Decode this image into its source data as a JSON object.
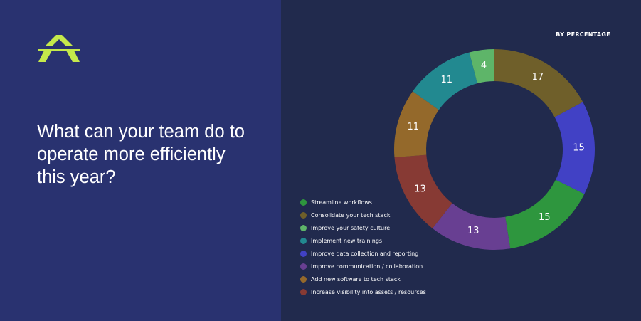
{
  "headline": "What can your team do to operate more efficiently this year?",
  "logo": {
    "icon": "brand-logo",
    "color": "#c5e94b"
  },
  "colors": {
    "left_bg": "#293270",
    "right_bg": "#212a4d"
  },
  "chart_data": {
    "type": "donut",
    "subtitle": "BY PERCENTAGE",
    "slices": [
      {
        "label": "Consolidate your tech stack",
        "value": 17,
        "color": "#6f5f2a"
      },
      {
        "label": "Improve data collection and reporting",
        "value": 15,
        "color": "#4141c5"
      },
      {
        "label": "Streamline workflows",
        "value": 15,
        "color": "#2e963e"
      },
      {
        "label": "Improve communication / collaboration",
        "value": 13,
        "color": "#683f92"
      },
      {
        "label": "Increase visibility into assets / resources",
        "value": 13,
        "color": "#873a34"
      },
      {
        "label": "Add new software to tech stack",
        "value": 11,
        "color": "#94692b"
      },
      {
        "label": "Implement new trainings",
        "value": 11,
        "color": "#228990"
      },
      {
        "label": "Improve your safety culture",
        "value": 4,
        "color": "#5eb569"
      }
    ],
    "legend": [
      {
        "label": "Streamline workflows",
        "color": "#2e963e"
      },
      {
        "label": "Consolidate your tech stack",
        "color": "#6f5f2a"
      },
      {
        "label": "Improve your safety culture",
        "color": "#5eb569"
      },
      {
        "label": "Implement new trainings",
        "color": "#228990"
      },
      {
        "label": "Improve data collection and reporting",
        "color": "#4141c5"
      },
      {
        "label": "Improve communication / collaboration",
        "color": "#683f92"
      },
      {
        "label": "Add new software to tech stack",
        "color": "#94692b"
      },
      {
        "label": "Increase visibility into assets / resources",
        "color": "#873a34"
      }
    ]
  }
}
